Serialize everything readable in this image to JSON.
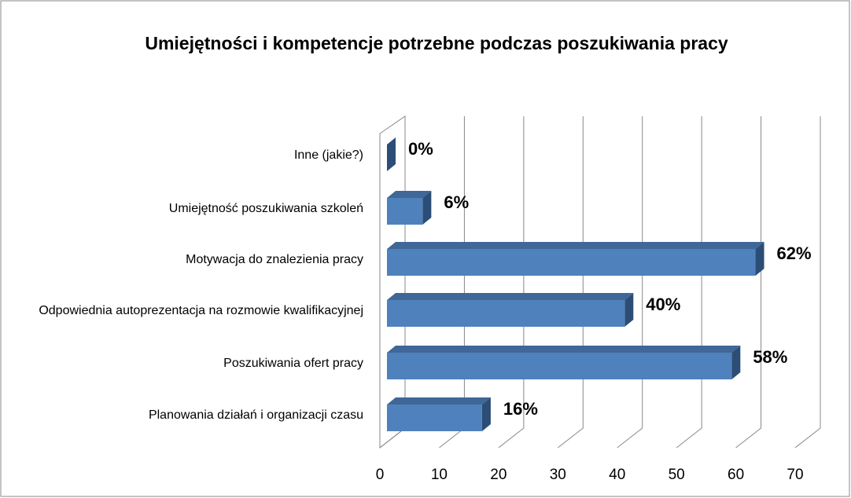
{
  "chart_data": {
    "type": "bar3d_horizontal",
    "title": "Umiejętności i kompetencje potrzebne podczas poszukiwania pracy",
    "categories": [
      "Inne (jakie?)",
      "Umiejętność poszukiwania szkoleń",
      "Motywacja do znalezienia pracy",
      "Odpowiednia autoprezentacja na rozmowie kwalifikacyjnej",
      "Poszukiwania ofert pracy",
      "Planowania działań i organizacji czasu"
    ],
    "values": [
      0,
      6,
      62,
      40,
      58,
      16
    ],
    "value_labels": [
      "0%",
      "6%",
      "62%",
      "40%",
      "58%",
      "16%"
    ],
    "color": "#4f81bd",
    "xlim": [
      0,
      70
    ],
    "xticks": [
      0,
      10,
      20,
      30,
      40,
      50,
      60,
      70
    ],
    "grid": true
  }
}
